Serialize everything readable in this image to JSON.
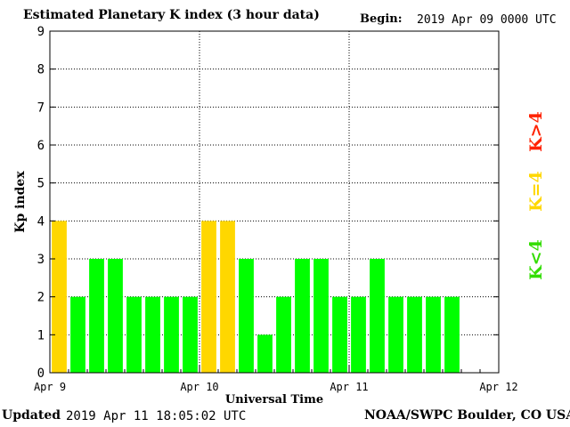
{
  "header": {
    "title": "Estimated Planetary K index (3 hour data)",
    "begin_label": "Begin:",
    "begin_value": "2019 Apr 09 0000 UTC"
  },
  "footer": {
    "updated_label": "Updated",
    "updated_value": "2019 Apr 11 18:05:02 UTC",
    "credit": "NOAA/SWPC Boulder, CO USA"
  },
  "legend": {
    "above": "K>4",
    "equal": "K=4",
    "below": "K<4"
  },
  "colors": {
    "below": "#00ff00",
    "equal": "#ffd700",
    "above": "#ff2200"
  },
  "chart_data": {
    "type": "bar",
    "title": "Estimated Planetary K index (3 hour data)",
    "xlabel": "Universal Time",
    "ylabel": "Kp index",
    "ylim": [
      0,
      9
    ],
    "yticks": [
      0,
      1,
      2,
      3,
      4,
      5,
      6,
      7,
      8,
      9
    ],
    "xticks": [
      "Apr 9",
      "Apr 10",
      "Apr 11",
      "Apr 12"
    ],
    "interval_hours": 3,
    "values": [
      4,
      2,
      3,
      3,
      2,
      2,
      2,
      2,
      4,
      4,
      3,
      1,
      2,
      3,
      3,
      2,
      2,
      3,
      2,
      2,
      2,
      2
    ],
    "grid": "dotted"
  }
}
